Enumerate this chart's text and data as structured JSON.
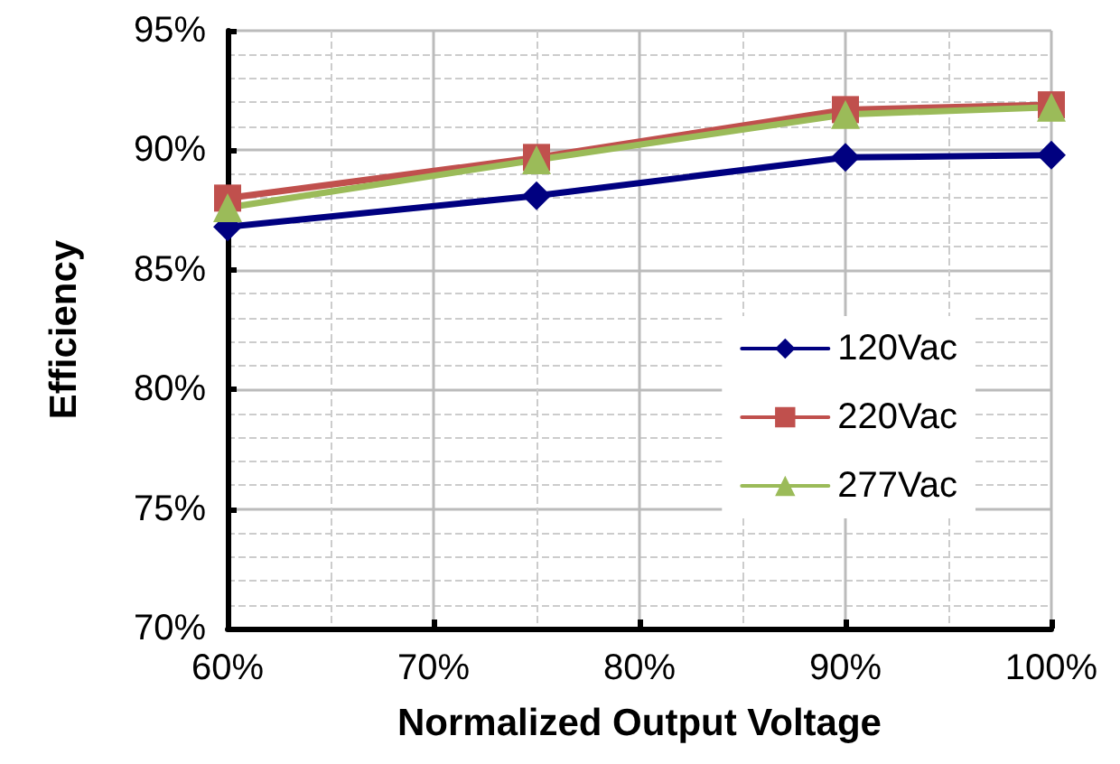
{
  "chart_data": {
    "type": "line",
    "xlabel": "Normalized Output Voltage",
    "ylabel": "Efficiency",
    "x": [
      60,
      75,
      90,
      100
    ],
    "series": [
      {
        "name": "120Vac",
        "color": "#000080",
        "marker": "diamond",
        "values": [
          86.8,
          88.1,
          89.7,
          89.8
        ]
      },
      {
        "name": "220Vac",
        "color": "#c0504d",
        "marker": "square",
        "values": [
          88.0,
          89.7,
          91.7,
          91.9
        ]
      },
      {
        "name": "277Vac",
        "color": "#9bbb59",
        "marker": "triangle",
        "values": [
          87.6,
          89.6,
          91.5,
          91.8
        ]
      }
    ],
    "xlim": [
      60,
      100
    ],
    "xticks": [
      {
        "value": 60,
        "label": "60%"
      },
      {
        "value": 70,
        "label": "70%"
      },
      {
        "value": 80,
        "label": "80%"
      },
      {
        "value": 90,
        "label": "90%"
      },
      {
        "value": 100,
        "label": "100%"
      }
    ],
    "ylim": [
      70,
      95
    ],
    "yticks": [
      {
        "value": 70,
        "label": "70%"
      },
      {
        "value": 75,
        "label": "75%"
      },
      {
        "value": 80,
        "label": "80%"
      },
      {
        "value": 85,
        "label": "85%"
      },
      {
        "value": 90,
        "label": "90%"
      },
      {
        "value": 95,
        "label": "95%"
      }
    ],
    "grid": true,
    "legend": "right",
    "line_style": "solid"
  }
}
